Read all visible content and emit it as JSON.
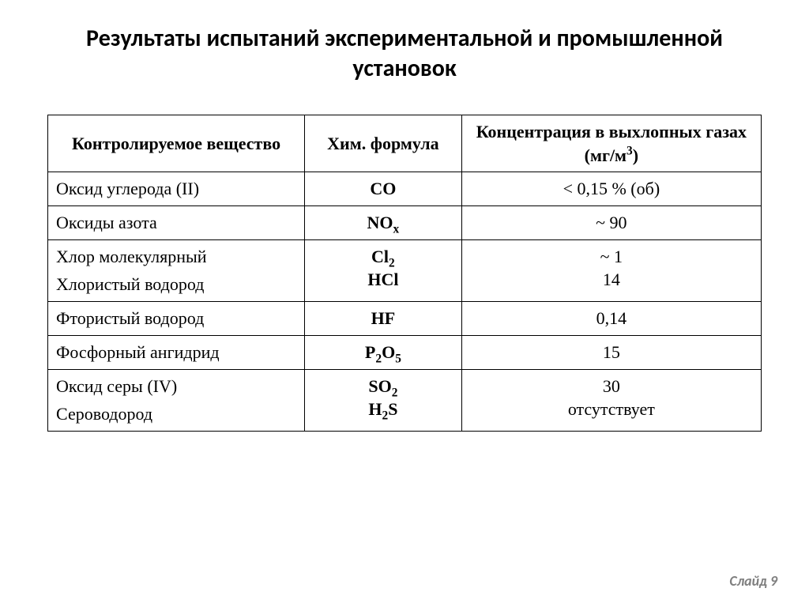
{
  "slide": {
    "title": "Результаты испытаний  экспериментальной и промышленной установок",
    "footer_label": "Слайд",
    "footer_number": "9"
  },
  "table": {
    "headers": {
      "substance": "Контролируемое вещество",
      "formula": "Хим. формула",
      "concentration_l1": "Концентрация в выхлопных газах",
      "concentration_unit": "(мг/м",
      "concentration_exp": "3",
      "concentration_close": ")"
    },
    "rows": [
      {
        "substance_lines": [
          "Оксид углерода (II)"
        ],
        "formula_parts": [
          {
            "t": "CO"
          }
        ],
        "conc_lines": [
          "< 0,15 % (об)"
        ]
      },
      {
        "substance_lines": [
          "Оксиды азота"
        ],
        "formula_parts": [
          {
            "t": "NO"
          },
          {
            "sub": "x"
          }
        ],
        "conc_lines": [
          "~ 90"
        ]
      },
      {
        "substance_lines": [
          "Хлор молекулярный",
          "Хлористый водород"
        ],
        "formula_lines": [
          [
            {
              "t": "Cl"
            },
            {
              "sub": "2"
            }
          ],
          [
            {
              "t": "HCl"
            }
          ]
        ],
        "conc_lines": [
          "~ 1",
          "14"
        ]
      },
      {
        "substance_lines": [
          "Фтористый водород"
        ],
        "formula_parts": [
          {
            "t": "HF"
          }
        ],
        "conc_lines": [
          "0,14"
        ]
      },
      {
        "substance_lines": [
          "Фосфорный ангидрид"
        ],
        "formula_parts": [
          {
            "t": "P"
          },
          {
            "sub": "2"
          },
          {
            "t": "O"
          },
          {
            "sub": "5"
          }
        ],
        "conc_lines": [
          "15"
        ]
      },
      {
        "substance_lines": [
          "Оксид серы (IV)",
          "Сероводород"
        ],
        "formula_lines": [
          [
            {
              "t": "SO"
            },
            {
              "sub": "2"
            }
          ],
          [
            {
              "t": "H"
            },
            {
              "sub": "2"
            },
            {
              "t": "S"
            }
          ]
        ],
        "conc_lines": [
          "30",
          "отсутствует"
        ]
      }
    ]
  }
}
